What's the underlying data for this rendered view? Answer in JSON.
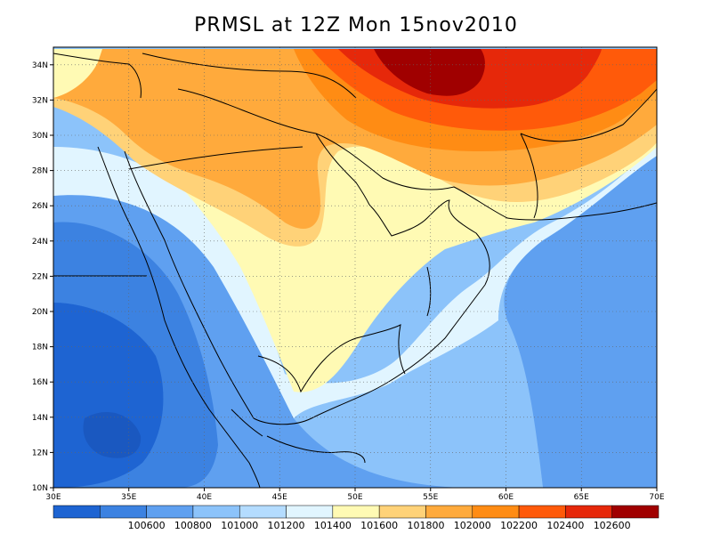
{
  "title": "PRMSL at 12Z Mon 15nov2010",
  "map": {
    "lon_range": [
      30,
      70
    ],
    "lat_range": [
      10,
      35
    ],
    "lon_ticks": [
      "30E",
      "35E",
      "40E",
      "45E",
      "50E",
      "55E",
      "60E",
      "65E",
      "70E"
    ],
    "lat_ticks": [
      "10N",
      "12N",
      "14N",
      "16N",
      "18N",
      "20N",
      "22N",
      "24N",
      "26N",
      "28N",
      "30N",
      "32N",
      "34N"
    ],
    "grid": "dotted",
    "colors": {
      "c0": "#1e64d2",
      "c1": "#3c82e1",
      "c2": "#5fa0f0",
      "c3": "#8cc3fa",
      "c4": "#b4dcff",
      "c5": "#e1f5ff",
      "c6": "#fffab4",
      "c7": "#ffd278",
      "c8": "#ffaa3c",
      "c9": "#ff8c14",
      "c10": "#ff5a0a",
      "c11": "#e6280a",
      "c12": "#a00000"
    }
  },
  "colorbar": {
    "labels": [
      "100600",
      "100800",
      "101000",
      "101200",
      "101400",
      "101600",
      "101800",
      "102000",
      "102200",
      "102400",
      "102600"
    ],
    "colors": [
      "#1e64d2",
      "#3c82e1",
      "#5fa0f0",
      "#8cc3fa",
      "#b4dcff",
      "#e1f5ff",
      "#fffab4",
      "#ffd278",
      "#ffaa3c",
      "#ff8c14",
      "#ff5a0a",
      "#e6280a",
      "#a00000"
    ]
  }
}
